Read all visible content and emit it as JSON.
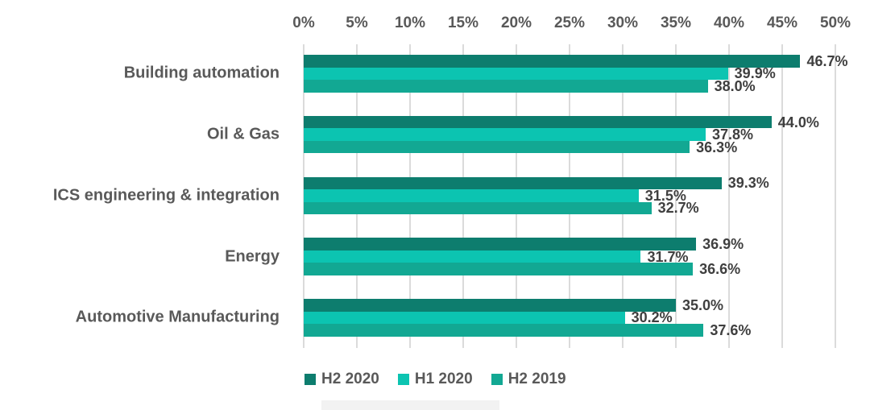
{
  "chart_data": {
    "type": "bar",
    "orientation": "horizontal",
    "title": "",
    "xlabel": "",
    "ylabel": "",
    "xlim": [
      0,
      50
    ],
    "grid": true,
    "legend_position": "bottom",
    "x_ticks": [
      "0%",
      "5%",
      "10%",
      "15%",
      "20%",
      "25%",
      "30%",
      "35%",
      "40%",
      "45%",
      "50%"
    ],
    "categories": [
      "Building automation",
      "Oil & Gas",
      "ICS engineering & integration",
      "Energy",
      "Automotive Manufacturing"
    ],
    "series": [
      {
        "name": "H2 2020",
        "color": "#0d7d6e",
        "values": [
          46.7,
          44.0,
          39.3,
          36.9,
          35.0
        ],
        "labels": [
          "46.7%",
          "44.0%",
          "39.3%",
          "36.9%",
          "35.0%"
        ]
      },
      {
        "name": "H1 2020",
        "color": "#0cc4b1",
        "values": [
          39.9,
          37.8,
          31.5,
          31.7,
          30.2
        ],
        "labels": [
          "39.9%",
          "37.8%",
          "31.5%",
          "31.7%",
          "30.2%"
        ]
      },
      {
        "name": "H2 2019",
        "color": "#12a893",
        "values": [
          38.0,
          36.3,
          32.7,
          36.6,
          37.6
        ],
        "labels": [
          "38.0%",
          "36.3%",
          "32.7%",
          "36.6%",
          "37.6%"
        ]
      }
    ],
    "colors": {
      "gridline": "#dbdbdb",
      "axis_text": "#595959",
      "category_text": "#595959",
      "data_label_text": "#3f3f3f"
    }
  }
}
